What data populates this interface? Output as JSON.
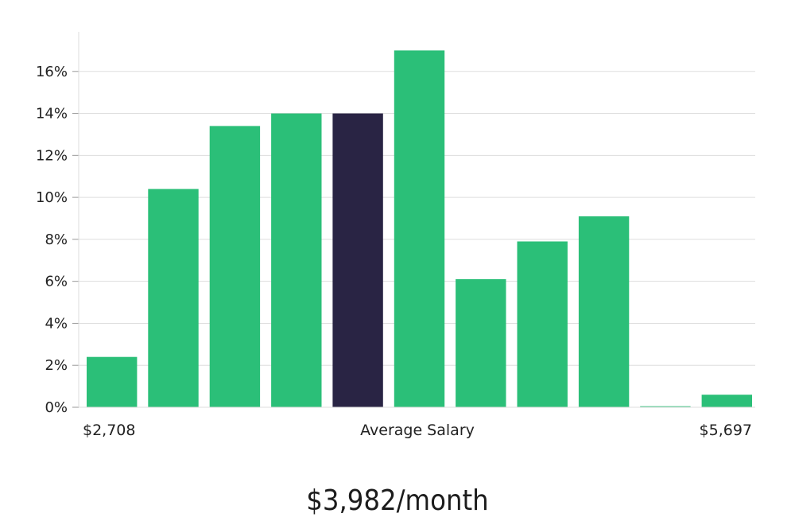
{
  "chart_data": {
    "type": "bar",
    "categories": [
      "1",
      "2",
      "3",
      "4",
      "5",
      "6",
      "7",
      "8",
      "9",
      "10",
      "11"
    ],
    "values": [
      2.4,
      10.4,
      13.4,
      14.0,
      14.0,
      17.0,
      6.1,
      7.9,
      9.1,
      0.05,
      0.6
    ],
    "highlight_index": 4,
    "ylim": [
      0,
      18
    ],
    "y_ticks": [
      "0%",
      "2%",
      "4%",
      "6%",
      "8%",
      "10%",
      "12%",
      "14%",
      "16%"
    ],
    "y_tick_values": [
      0,
      2,
      4,
      6,
      8,
      10,
      12,
      14,
      16
    ],
    "x_min_label": "$2,708",
    "x_center_label": "Average Salary",
    "x_max_label": "$5,697",
    "grid": true,
    "colors": {
      "bar": "#2bbf78",
      "highlight": "#292444",
      "grid": "#dddddd"
    }
  },
  "caption": "$3,982/month"
}
